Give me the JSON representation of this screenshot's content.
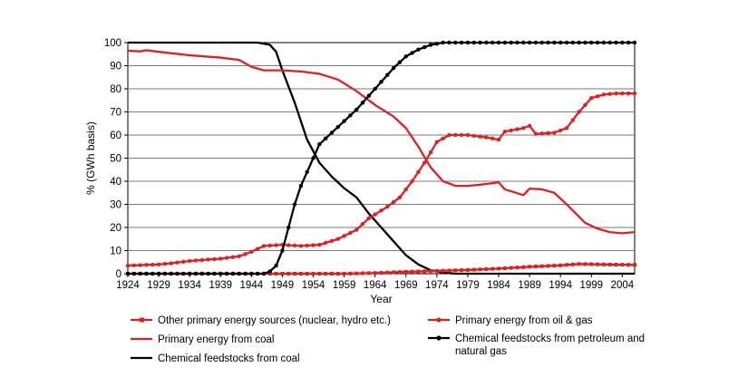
{
  "chart_data": {
    "type": "line",
    "title": "",
    "xlabel": "Year",
    "ylabel": "% (GWh basis)",
    "xlim": [
      1924,
      2006
    ],
    "ylim": [
      0,
      100
    ],
    "x_ticks": [
      1924,
      1929,
      1934,
      1939,
      1944,
      1949,
      1954,
      1959,
      1964,
      1969,
      1974,
      1979,
      1984,
      1989,
      1994,
      1999,
      2004
    ],
    "y_ticks": [
      0,
      10,
      20,
      30,
      40,
      50,
      60,
      70,
      80,
      90,
      100
    ],
    "grid": "horizontal",
    "legend_placement": "bottom",
    "series": [
      {
        "name": "Other primary energy sources (nuclear, hydro etc.)",
        "color": "#e02020",
        "marker": "square",
        "points": [
          [
            1924,
            0
          ],
          [
            1929,
            0
          ],
          [
            1934,
            0
          ],
          [
            1939,
            0
          ],
          [
            1944,
            0
          ],
          [
            1949,
            0
          ],
          [
            1954,
            0
          ],
          [
            1959,
            0
          ],
          [
            1964,
            0.3
          ],
          [
            1969,
            0.8
          ],
          [
            1974,
            1.2
          ],
          [
            1979,
            1.6
          ],
          [
            1984,
            2.2
          ],
          [
            1989,
            3.0
          ],
          [
            1994,
            3.6
          ],
          [
            1997,
            4.2
          ],
          [
            2001,
            4.0
          ],
          [
            2006,
            3.8
          ]
        ]
      },
      {
        "name": "Primary energy from coal",
        "color": "#e02020",
        "marker": "none",
        "points": [
          [
            1924,
            96.5
          ],
          [
            1926,
            96.2
          ],
          [
            1927,
            96.7
          ],
          [
            1929,
            96.0
          ],
          [
            1934,
            94.5
          ],
          [
            1939,
            93.5
          ],
          [
            1942,
            92.5
          ],
          [
            1944,
            89.5
          ],
          [
            1946,
            88
          ],
          [
            1949,
            88
          ],
          [
            1952,
            87.5
          ],
          [
            1955,
            86.5
          ],
          [
            1958,
            84
          ],
          [
            1961,
            79
          ],
          [
            1964,
            73
          ],
          [
            1967,
            68
          ],
          [
            1969,
            63
          ],
          [
            1971,
            55
          ],
          [
            1973,
            46
          ],
          [
            1975,
            40
          ],
          [
            1977,
            38
          ],
          [
            1979,
            38
          ],
          [
            1981,
            38.5
          ],
          [
            1984,
            39.5
          ],
          [
            1985,
            36.5
          ],
          [
            1988,
            34
          ],
          [
            1989,
            36.8
          ],
          [
            1991,
            36.5
          ],
          [
            1993,
            35
          ],
          [
            1995,
            30
          ],
          [
            1998,
            22
          ],
          [
            2000,
            19.5
          ],
          [
            2002,
            18
          ],
          [
            2004,
            17.5
          ],
          [
            2006,
            18
          ]
        ]
      },
      {
        "name": "Chemical feedstocks from coal",
        "color": "#000000",
        "marker": "none",
        "points": [
          [
            1924,
            100
          ],
          [
            1945,
            100
          ],
          [
            1947,
            99
          ],
          [
            1948,
            96
          ],
          [
            1949,
            88
          ],
          [
            1951,
            74
          ],
          [
            1953,
            58
          ],
          [
            1955,
            48
          ],
          [
            1957,
            42
          ],
          [
            1959,
            37
          ],
          [
            1961,
            33
          ],
          [
            1963,
            26
          ],
          [
            1965,
            20
          ],
          [
            1967,
            14
          ],
          [
            1969,
            8
          ],
          [
            1971,
            4
          ],
          [
            1973,
            1.5
          ],
          [
            1975,
            0.5
          ],
          [
            1977,
            0
          ],
          [
            2006,
            0
          ]
        ]
      },
      {
        "name": "Primary energy from oil & gas",
        "color": "#e02020",
        "marker": "circle",
        "points": [
          [
            1924,
            3.5
          ],
          [
            1927,
            3.8
          ],
          [
            1929,
            4
          ],
          [
            1931,
            4.5
          ],
          [
            1934,
            5.5
          ],
          [
            1939,
            6.5
          ],
          [
            1942,
            7.5
          ],
          [
            1944,
            9.5
          ],
          [
            1946,
            12
          ],
          [
            1949,
            12.5
          ],
          [
            1952,
            12
          ],
          [
            1955,
            12.5
          ],
          [
            1958,
            15
          ],
          [
            1961,
            19
          ],
          [
            1963,
            24
          ],
          [
            1966,
            29
          ],
          [
            1968,
            33
          ],
          [
            1970,
            40
          ],
          [
            1972,
            48
          ],
          [
            1974,
            57
          ],
          [
            1976,
            60
          ],
          [
            1979,
            60
          ],
          [
            1982,
            59
          ],
          [
            1984,
            58
          ],
          [
            1985,
            61.5
          ],
          [
            1987,
            62.5
          ],
          [
            1988,
            63
          ],
          [
            1989,
            64
          ],
          [
            1990,
            60.5
          ],
          [
            1993,
            61
          ],
          [
            1995,
            63
          ],
          [
            1997,
            70
          ],
          [
            1999,
            76
          ],
          [
            2001,
            77.5
          ],
          [
            2003,
            78
          ],
          [
            2006,
            78
          ]
        ]
      },
      {
        "name": "Chemical feedstocks from petroleum and natural gas",
        "color": "#000000",
        "marker": "circle",
        "points": [
          [
            1924,
            0
          ],
          [
            1946,
            0
          ],
          [
            1947,
            1
          ],
          [
            1948,
            3.5
          ],
          [
            1949,
            10
          ],
          [
            1950,
            20
          ],
          [
            1951,
            30
          ],
          [
            1952,
            38
          ],
          [
            1953,
            44
          ],
          [
            1954,
            50
          ],
          [
            1955,
            56
          ],
          [
            1957,
            61
          ],
          [
            1959,
            66
          ],
          [
            1961,
            71
          ],
          [
            1963,
            77
          ],
          [
            1965,
            83
          ],
          [
            1967,
            89
          ],
          [
            1969,
            94
          ],
          [
            1971,
            97
          ],
          [
            1973,
            99
          ],
          [
            1975,
            100
          ],
          [
            2006,
            100
          ]
        ]
      }
    ]
  }
}
